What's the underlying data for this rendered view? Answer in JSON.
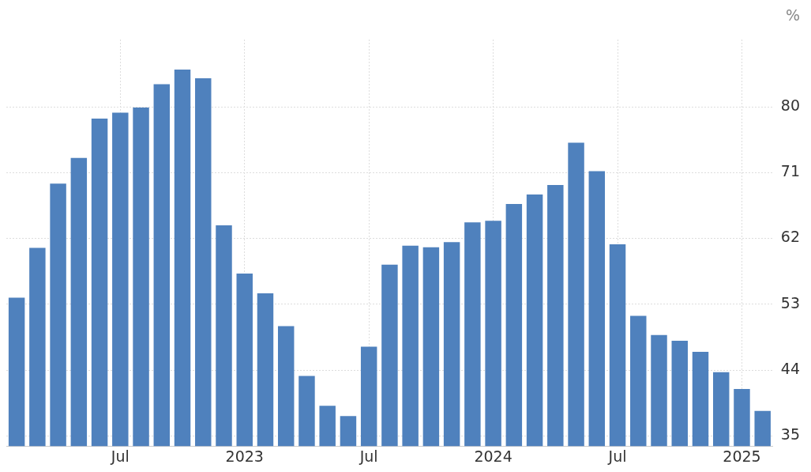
{
  "chart_data": {
    "type": "bar",
    "ylabel": "%",
    "categories": [
      null,
      null,
      null,
      null,
      null,
      "Jul",
      null,
      null,
      null,
      null,
      null,
      "2023",
      null,
      null,
      null,
      null,
      null,
      "Jul",
      null,
      null,
      null,
      null,
      null,
      "2024",
      null,
      null,
      null,
      null,
      null,
      "Jul",
      null,
      null,
      null,
      null,
      null,
      "2025",
      null
    ],
    "values": [
      53.9,
      60.7,
      69.5,
      73.0,
      78.4,
      79.2,
      79.9,
      83.1,
      85.1,
      83.9,
      63.8,
      57.2,
      54.5,
      50.0,
      43.2,
      39.1,
      37.7,
      47.2,
      58.4,
      61.0,
      60.8,
      61.5,
      64.2,
      64.4,
      66.7,
      68.0,
      69.3,
      75.1,
      71.2,
      61.2,
      51.4,
      48.8,
      48.0,
      46.5,
      43.7,
      41.4,
      38.4
    ],
    "color": "#4f81bd",
    "ylim": [
      33.6,
      89.2
    ],
    "yticks": [
      35,
      44,
      53,
      62,
      71,
      80
    ],
    "grid": true,
    "legend": false
  }
}
